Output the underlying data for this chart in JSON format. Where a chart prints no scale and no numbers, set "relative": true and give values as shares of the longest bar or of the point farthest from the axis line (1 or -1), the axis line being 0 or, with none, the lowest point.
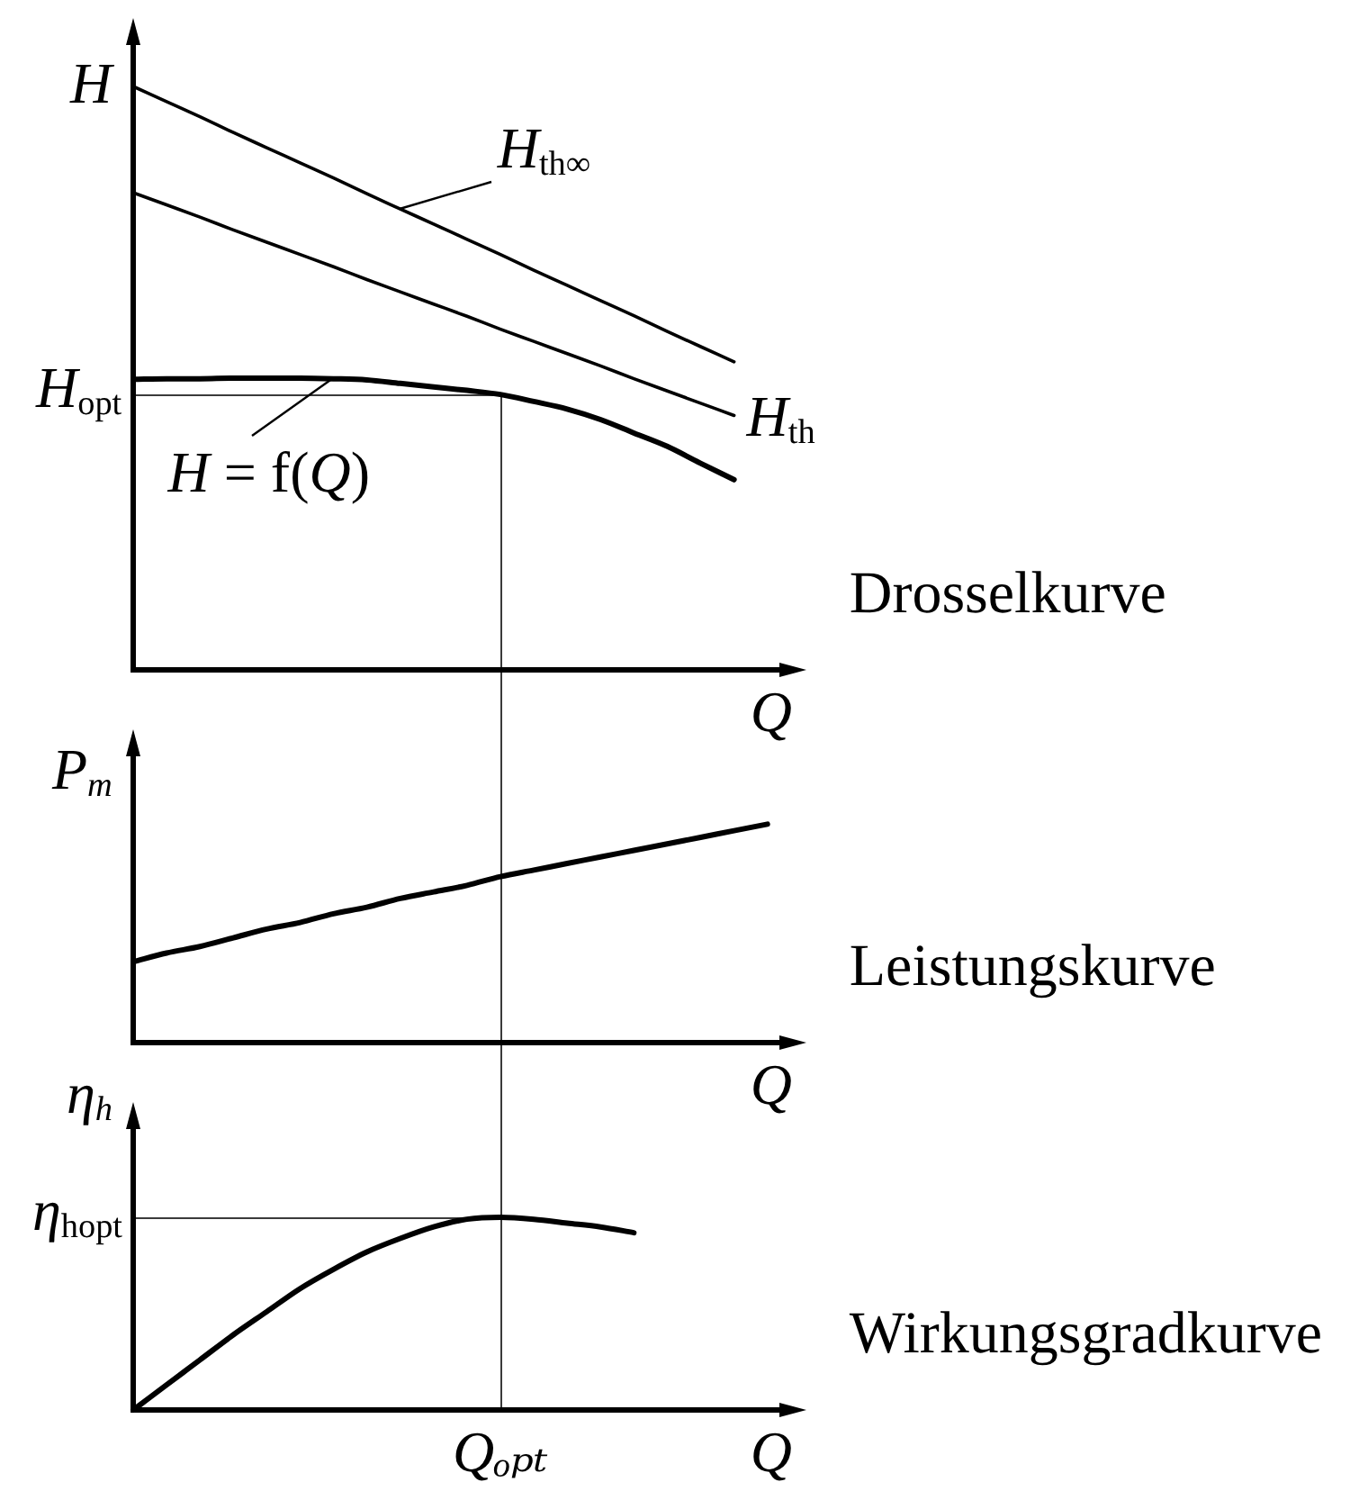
{
  "chart_data": [
    {
      "type": "line",
      "annotations": [
        "Drosselkurve"
      ],
      "xlabel": "Q",
      "ylabel": "H",
      "relative": true,
      "categories": [
        null,
        null,
        null,
        null,
        null,
        null,
        null,
        null,
        null,
        null,
        null,
        null,
        null,
        null,
        null,
        null,
        null,
        null,
        null,
        null,
        null
      ],
      "series": [
        {
          "name": "H$_{th∞}$",
          "color": "#000000",
          "values": [
            1.0,
            0.974,
            0.948,
            0.921,
            0.895,
            0.869,
            0.843,
            0.816,
            0.79,
            0.764,
            0.738,
            0.712,
            0.685,
            0.659,
            0.633,
            0.607,
            0.58,
            0.554,
            0.528,
            null,
            null
          ]
        },
        {
          "name": "H$_{th}$",
          "color": "#000000",
          "values": [
            0.818,
            0.797,
            0.776,
            0.754,
            0.733,
            0.712,
            0.691,
            0.669,
            0.648,
            0.627,
            0.606,
            0.584,
            0.563,
            0.542,
            0.521,
            0.499,
            0.478,
            0.457,
            0.436,
            null,
            null
          ]
        },
        {
          "name": "H = f(Q)",
          "color": "#000000",
          "values": [
            0.498,
            0.499,
            0.499,
            0.5,
            0.5,
            0.5,
            0.499,
            0.497,
            0.491,
            0.485,
            0.479,
            0.472,
            0.46,
            0.447,
            0.429,
            0.406,
            0.383,
            0.354,
            0.326,
            null,
            null
          ]
        }
      ],
      "ref_lines": [
        {
          "axis": "y",
          "value": 0.472,
          "label": "H$_{opt}$"
        }
      ]
    },
    {
      "type": "line",
      "annotations": [
        "Leistungskurve"
      ],
      "xlabel": "Q",
      "ylabel": "P$_{m}$",
      "relative": true,
      "categories": [
        null,
        null,
        null,
        null,
        null,
        null,
        null,
        null,
        null,
        null,
        null,
        null,
        null,
        null,
        null,
        null,
        null,
        null,
        null,
        null,
        null
      ],
      "series": [
        {
          "color": "#000000",
          "values": [
            0.37,
            0.41,
            0.44,
            0.48,
            0.52,
            0.55,
            0.59,
            0.62,
            0.66,
            0.69,
            0.72,
            0.76,
            0.79,
            0.82,
            0.85,
            0.88,
            0.91,
            0.94,
            0.97,
            1.0,
            null
          ]
        }
      ]
    },
    {
      "type": "line",
      "annotations": [
        "Wirkungsgradkurve",
        "Qₒₚₜ"
      ],
      "xlabel": "Q",
      "ylabel": "η$_{h}$",
      "relative": true,
      "categories": [
        null,
        null,
        null,
        null,
        null,
        null,
        null,
        null,
        null,
        null,
        null,
        null,
        null,
        null,
        null,
        null,
        null,
        null,
        null,
        null,
        null
      ],
      "series": [
        {
          "color": "#000000",
          "values": [
            0,
            0.13,
            0.26,
            0.39,
            0.51,
            0.63,
            0.73,
            0.82,
            0.89,
            0.95,
            0.99,
            1.0,
            0.99,
            0.97,
            0.95,
            0.92,
            null,
            null,
            null,
            null,
            null
          ]
        }
      ],
      "ref_lines": [
        {
          "axis": "y",
          "value": 1.0,
          "label": "η$_{hopt}$"
        }
      ]
    }
  ]
}
